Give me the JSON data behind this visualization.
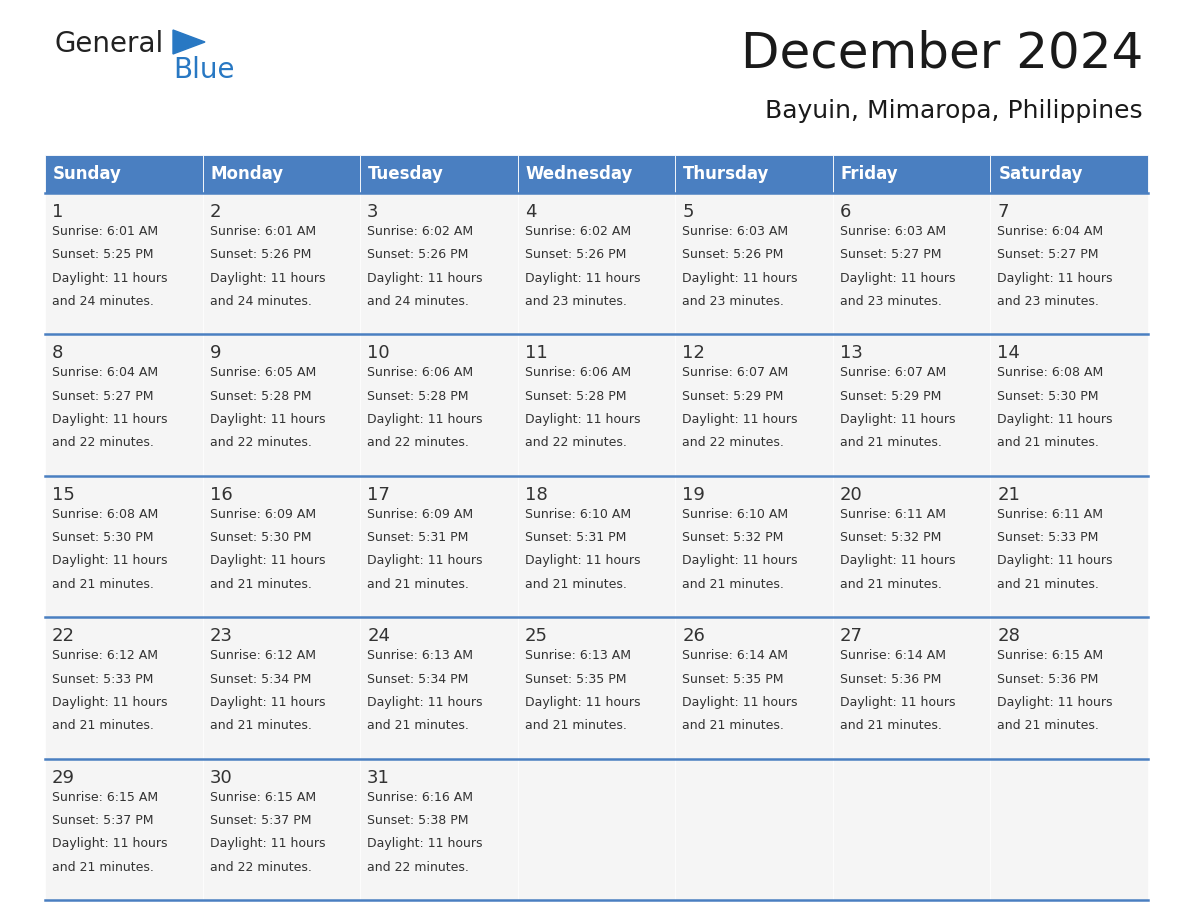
{
  "title": "December 2024",
  "subtitle": "Bayuin, Mimaropa, Philippines",
  "header_color": "#4a7fc1",
  "header_text_color": "#FFFFFF",
  "bg_color": "#FFFFFF",
  "cell_bg_odd": "#FFFFFF",
  "cell_bg_even": "#F5F5F5",
  "separator_color": "#4a7fc1",
  "text_color": "#333333",
  "day_names": [
    "Sunday",
    "Monday",
    "Tuesday",
    "Wednesday",
    "Thursday",
    "Friday",
    "Saturday"
  ],
  "days": [
    {
      "day": 1,
      "col": 0,
      "row": 0,
      "sunrise": "6:01 AM",
      "sunset": "5:25 PM",
      "daylight_min": 24
    },
    {
      "day": 2,
      "col": 1,
      "row": 0,
      "sunrise": "6:01 AM",
      "sunset": "5:26 PM",
      "daylight_min": 24
    },
    {
      "day": 3,
      "col": 2,
      "row": 0,
      "sunrise": "6:02 AM",
      "sunset": "5:26 PM",
      "daylight_min": 24
    },
    {
      "day": 4,
      "col": 3,
      "row": 0,
      "sunrise": "6:02 AM",
      "sunset": "5:26 PM",
      "daylight_min": 23
    },
    {
      "day": 5,
      "col": 4,
      "row": 0,
      "sunrise": "6:03 AM",
      "sunset": "5:26 PM",
      "daylight_min": 23
    },
    {
      "day": 6,
      "col": 5,
      "row": 0,
      "sunrise": "6:03 AM",
      "sunset": "5:27 PM",
      "daylight_min": 23
    },
    {
      "day": 7,
      "col": 6,
      "row": 0,
      "sunrise": "6:04 AM",
      "sunset": "5:27 PM",
      "daylight_min": 23
    },
    {
      "day": 8,
      "col": 0,
      "row": 1,
      "sunrise": "6:04 AM",
      "sunset": "5:27 PM",
      "daylight_min": 22
    },
    {
      "day": 9,
      "col": 1,
      "row": 1,
      "sunrise": "6:05 AM",
      "sunset": "5:28 PM",
      "daylight_min": 22
    },
    {
      "day": 10,
      "col": 2,
      "row": 1,
      "sunrise": "6:06 AM",
      "sunset": "5:28 PM",
      "daylight_min": 22
    },
    {
      "day": 11,
      "col": 3,
      "row": 1,
      "sunrise": "6:06 AM",
      "sunset": "5:28 PM",
      "daylight_min": 22
    },
    {
      "day": 12,
      "col": 4,
      "row": 1,
      "sunrise": "6:07 AM",
      "sunset": "5:29 PM",
      "daylight_min": 22
    },
    {
      "day": 13,
      "col": 5,
      "row": 1,
      "sunrise": "6:07 AM",
      "sunset": "5:29 PM",
      "daylight_min": 21
    },
    {
      "day": 14,
      "col": 6,
      "row": 1,
      "sunrise": "6:08 AM",
      "sunset": "5:30 PM",
      "daylight_min": 21
    },
    {
      "day": 15,
      "col": 0,
      "row": 2,
      "sunrise": "6:08 AM",
      "sunset": "5:30 PM",
      "daylight_min": 21
    },
    {
      "day": 16,
      "col": 1,
      "row": 2,
      "sunrise": "6:09 AM",
      "sunset": "5:30 PM",
      "daylight_min": 21
    },
    {
      "day": 17,
      "col": 2,
      "row": 2,
      "sunrise": "6:09 AM",
      "sunset": "5:31 PM",
      "daylight_min": 21
    },
    {
      "day": 18,
      "col": 3,
      "row": 2,
      "sunrise": "6:10 AM",
      "sunset": "5:31 PM",
      "daylight_min": 21
    },
    {
      "day": 19,
      "col": 4,
      "row": 2,
      "sunrise": "6:10 AM",
      "sunset": "5:32 PM",
      "daylight_min": 21
    },
    {
      "day": 20,
      "col": 5,
      "row": 2,
      "sunrise": "6:11 AM",
      "sunset": "5:32 PM",
      "daylight_min": 21
    },
    {
      "day": 21,
      "col": 6,
      "row": 2,
      "sunrise": "6:11 AM",
      "sunset": "5:33 PM",
      "daylight_min": 21
    },
    {
      "day": 22,
      "col": 0,
      "row": 3,
      "sunrise": "6:12 AM",
      "sunset": "5:33 PM",
      "daylight_min": 21
    },
    {
      "day": 23,
      "col": 1,
      "row": 3,
      "sunrise": "6:12 AM",
      "sunset": "5:34 PM",
      "daylight_min": 21
    },
    {
      "day": 24,
      "col": 2,
      "row": 3,
      "sunrise": "6:13 AM",
      "sunset": "5:34 PM",
      "daylight_min": 21
    },
    {
      "day": 25,
      "col": 3,
      "row": 3,
      "sunrise": "6:13 AM",
      "sunset": "5:35 PM",
      "daylight_min": 21
    },
    {
      "day": 26,
      "col": 4,
      "row": 3,
      "sunrise": "6:14 AM",
      "sunset": "5:35 PM",
      "daylight_min": 21
    },
    {
      "day": 27,
      "col": 5,
      "row": 3,
      "sunrise": "6:14 AM",
      "sunset": "5:36 PM",
      "daylight_min": 21
    },
    {
      "day": 28,
      "col": 6,
      "row": 3,
      "sunrise": "6:15 AM",
      "sunset": "5:36 PM",
      "daylight_min": 21
    },
    {
      "day": 29,
      "col": 0,
      "row": 4,
      "sunrise": "6:15 AM",
      "sunset": "5:37 PM",
      "daylight_min": 21
    },
    {
      "day": 30,
      "col": 1,
      "row": 4,
      "sunrise": "6:15 AM",
      "sunset": "5:37 PM",
      "daylight_min": 22
    },
    {
      "day": 31,
      "col": 2,
      "row": 4,
      "sunrise": "6:16 AM",
      "sunset": "5:38 PM",
      "daylight_min": 22
    }
  ],
  "num_rows": 5,
  "logo_general_color": "#222222",
  "logo_blue_color": "#2878c3",
  "logo_triangle_color": "#2878c3",
  "title_fontsize": 36,
  "subtitle_fontsize": 18,
  "header_fontsize": 12,
  "day_num_fontsize": 13,
  "cell_text_fontsize": 9
}
